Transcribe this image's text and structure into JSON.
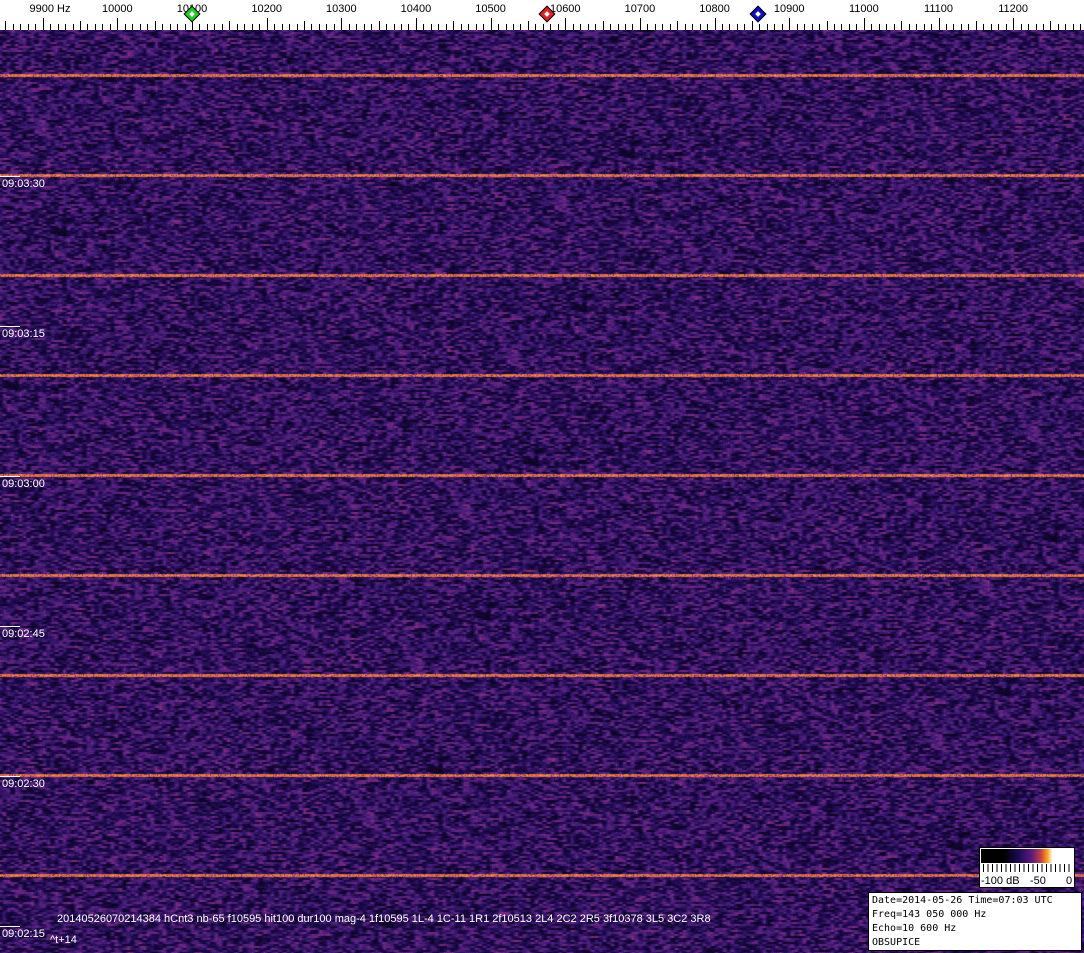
{
  "freq_axis": {
    "unit": "Hz",
    "labels": [
      "9900 Hz",
      "10000",
      "10100",
      "10200",
      "10300",
      "10400",
      "10500",
      "10600",
      "10700",
      "10800",
      "10900",
      "11000",
      "11100",
      "11200"
    ],
    "values": [
      9900,
      10000,
      10100,
      10200,
      10300,
      10400,
      10500,
      10600,
      10700,
      10800,
      10900,
      11000,
      11100,
      11200
    ]
  },
  "markers": [
    {
      "name": "green-marker",
      "freq": 10100,
      "color": "#22cc22"
    },
    {
      "name": "red-marker",
      "freq": 10576,
      "color": "#dd2222"
    },
    {
      "name": "blue-marker",
      "freq": 10858,
      "color": "#1010c0"
    }
  ],
  "time_labels": [
    "09:03:30",
    "09:03:15",
    "09:03:00",
    "09:02:45",
    "09:02:30",
    "09:02:15"
  ],
  "detection_text": "20140526070214384 hCnt3 nb-65 f10595 hit100 dur100 mag-4 1f10595 1L-4 1C-11 1R1 2f10513 2L4 2C2 2R5 3f10378 3L5 3C2 3R8",
  "time_offset": "^t+14",
  "colorbar": {
    "min_label": "-100 dB",
    "mid_label": "-50",
    "max_label": "0"
  },
  "info": {
    "line1": "Date=2014-05-26 Time=07:03 UTC",
    "line2": "Freq=143 050 000 Hz",
    "line3": "Echo=10 600 Hz",
    "line4": "OBSUPICE"
  },
  "colors": {
    "background_noise": "#4a1e78",
    "carrier": "#f8a030"
  }
}
